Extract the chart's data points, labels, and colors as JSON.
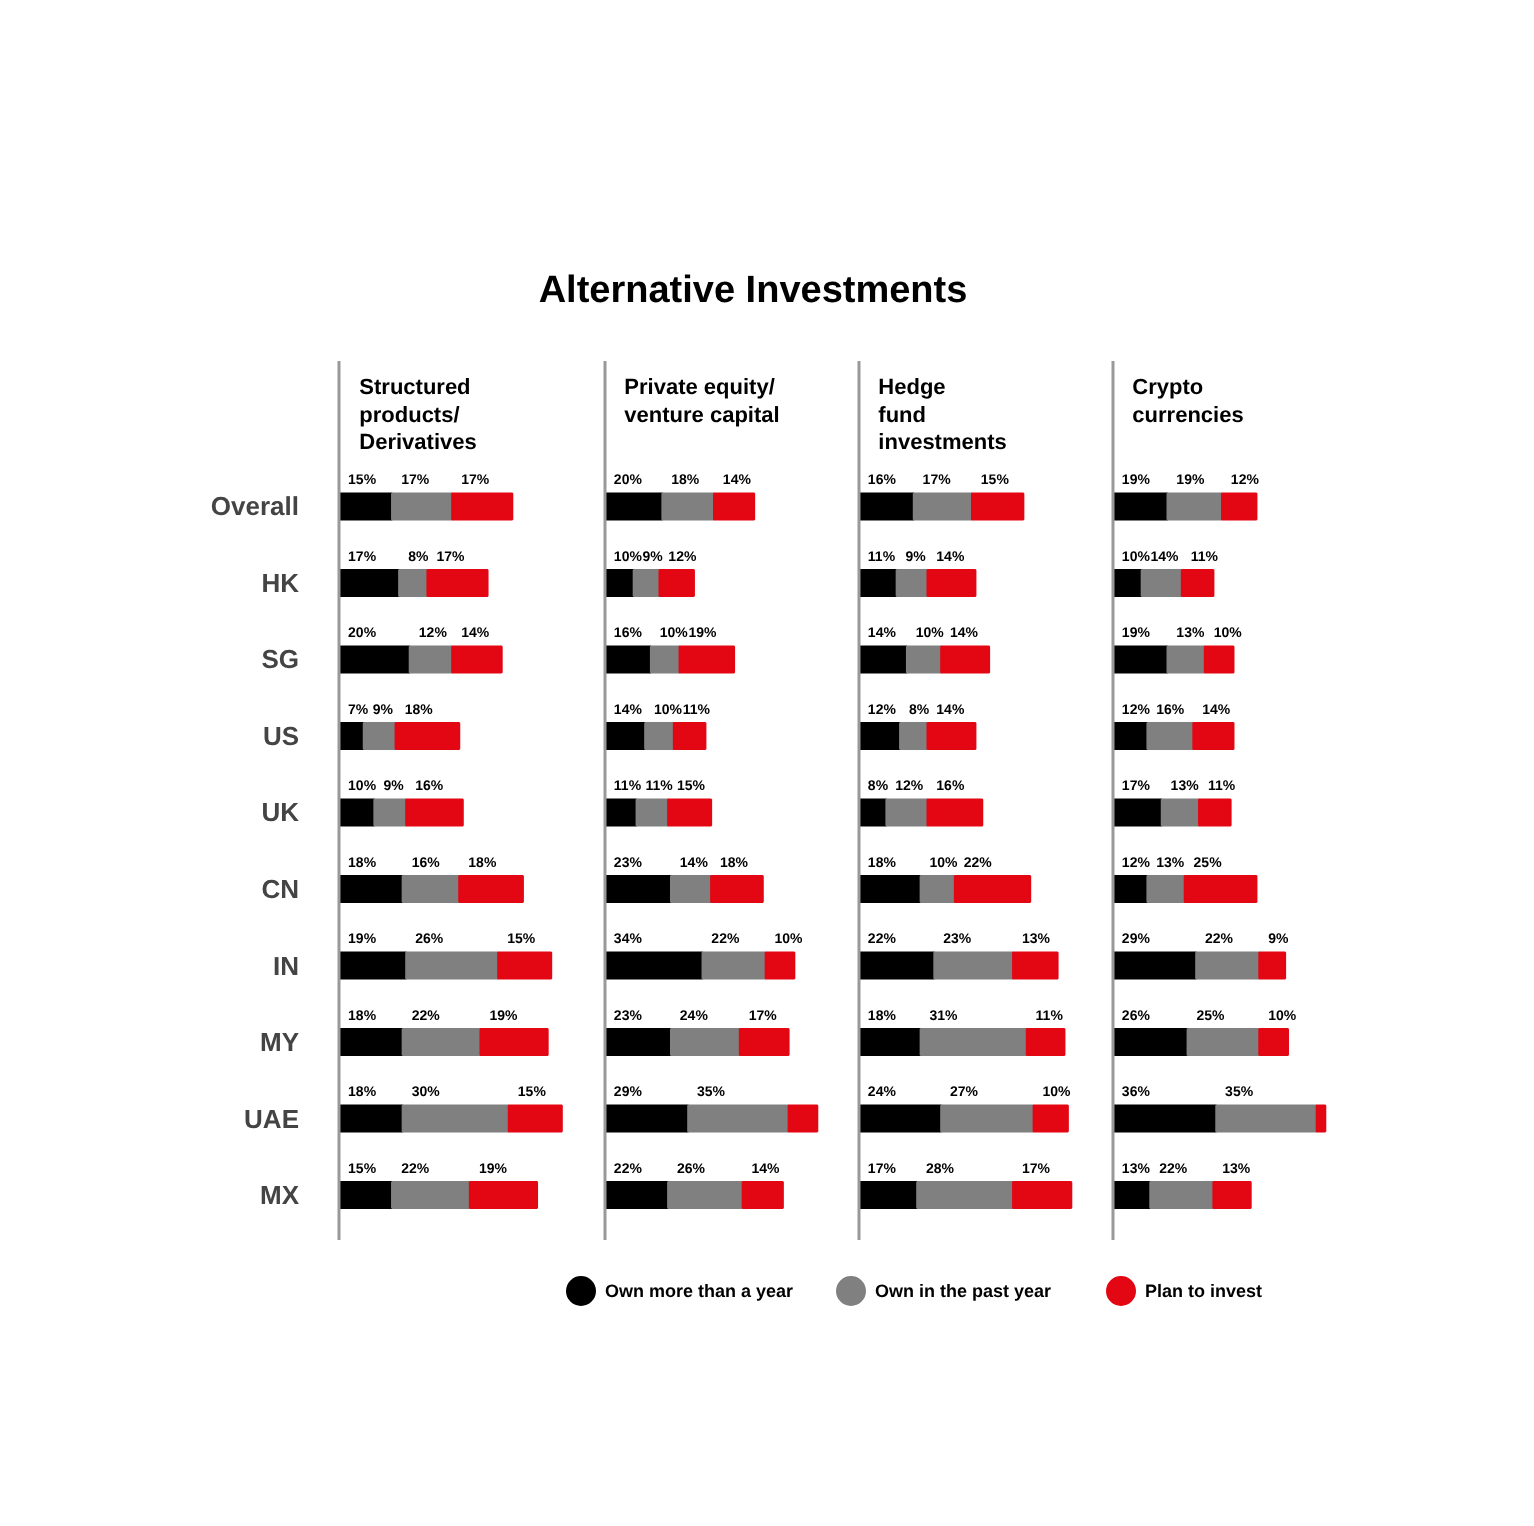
{
  "chart_data": [
    {
      "type": "other",
      "title": "Alternative Investments"
    },
    {
      "type": "bar",
      "orientation": "horizontal",
      "stacked": true,
      "title": "Structured\nproducts/\nDerivatives",
      "tick_labels": "y",
      "legend": "bottom",
      "categories": [
        "Overall",
        "HK",
        "SG",
        "US",
        "UK",
        "CN",
        "IN",
        "MY",
        "UAE",
        "MX"
      ],
      "series": [
        {
          "name": "Own more than a year",
          "color": "#000000",
          "values": [
            15,
            17,
            20,
            7,
            10,
            18,
            19,
            18,
            18,
            15
          ],
          "value_labels": [
            "15%",
            "17%",
            "20%",
            "7%",
            "10%",
            "18%",
            "19%",
            "18%",
            "18%",
            "15%"
          ]
        },
        {
          "name": "Own in the past year",
          "color": "#808080",
          "values": [
            17,
            8,
            12,
            9,
            9,
            16,
            26,
            22,
            30,
            22
          ],
          "value_labels": [
            "17%",
            "8%",
            "12%",
            "9%",
            "9%",
            "16%",
            "26%",
            "22%",
            "30%",
            "22%"
          ]
        },
        {
          "name": "Plan to invest",
          "color": "#e30613",
          "values": [
            17,
            17,
            14,
            18,
            16,
            18,
            15,
            19,
            15,
            19
          ],
          "value_labels": [
            "17%",
            "17%",
            "14%",
            "18%",
            "16%",
            "18%",
            "15%",
            "19%",
            "15%",
            "19%"
          ]
        }
      ]
    },
    {
      "type": "bar",
      "orientation": "horizontal",
      "stacked": true,
      "title": "Private equity/\nventure capital",
      "tick_labels": false,
      "series": [
        {
          "color": "#000000",
          "values": [
            20,
            10,
            16,
            14,
            11,
            23,
            34,
            23,
            29,
            22
          ],
          "value_labels": [
            "20%",
            "10%",
            "16%",
            "14%",
            "11%",
            "23%",
            "34%",
            "23%",
            "29%",
            "22%"
          ]
        },
        {
          "color": "#808080",
          "values": [
            18,
            9,
            10,
            10,
            11,
            14,
            22,
            24,
            35,
            26
          ],
          "value_labels": [
            "18%",
            "9%",
            "10%",
            "10%",
            "11%",
            "14%",
            "22%",
            "24%",
            "35%",
            "26%"
          ]
        },
        {
          "color": "#e30613",
          "values": [
            14,
            12,
            19,
            11,
            15,
            18,
            10,
            17,
            10,
            14
          ],
          "value_labels": [
            "14%",
            "12%",
            "19%",
            "11%",
            "15%",
            "18%",
            "10%",
            "17%",
            null,
            "14%"
          ]
        }
      ]
    },
    {
      "type": "bar",
      "orientation": "horizontal",
      "stacked": true,
      "title": "Hedge\nfund\ninvestments",
      "tick_labels": false,
      "series": [
        {
          "color": "#000000",
          "values": [
            16,
            11,
            14,
            12,
            8,
            18,
            22,
            18,
            24,
            17
          ],
          "value_labels": [
            "16%",
            "11%",
            "14%",
            "12%",
            "8%",
            "18%",
            "22%",
            "18%",
            "24%",
            "17%"
          ]
        },
        {
          "color": "#808080",
          "values": [
            17,
            9,
            10,
            8,
            12,
            10,
            23,
            31,
            27,
            28
          ],
          "value_labels": [
            "17%",
            "9%",
            "10%",
            "8%",
            "12%",
            "10%",
            "23%",
            "31%",
            "27%",
            "28%"
          ]
        },
        {
          "color": "#e30613",
          "values": [
            15,
            14,
            14,
            14,
            16,
            22,
            13,
            11,
            10,
            17
          ],
          "value_labels": [
            "15%",
            "14%",
            "14%",
            "14%",
            "16%",
            "22%",
            "13%",
            "11%",
            "10%",
            "17%"
          ]
        }
      ]
    },
    {
      "type": "bar",
      "orientation": "horizontal",
      "stacked": true,
      "title": "Crypto\ncurrencies",
      "tick_labels": false,
      "series": [
        {
          "color": "#000000",
          "values": [
            19,
            10,
            19,
            12,
            17,
            12,
            29,
            26,
            36,
            13
          ],
          "value_labels": [
            "19%",
            "10%",
            "19%",
            "12%",
            "17%",
            "12%",
            "29%",
            "26%",
            "36%",
            "13%"
          ]
        },
        {
          "color": "#808080",
          "values": [
            19,
            14,
            13,
            16,
            13,
            13,
            22,
            25,
            35,
            22
          ],
          "value_labels": [
            "19%",
            "14%",
            "13%",
            "16%",
            "13%",
            "13%",
            "22%",
            "25%",
            "35%",
            "22%"
          ]
        },
        {
          "color": "#e30613",
          "values": [
            12,
            11,
            10,
            14,
            11,
            25,
            9,
            10,
            3,
            13
          ],
          "value_labels": [
            "12%",
            "11%",
            "10%",
            "14%",
            "11%",
            "25%",
            "9%",
            "10%",
            null,
            "13%"
          ]
        }
      ]
    }
  ]
}
